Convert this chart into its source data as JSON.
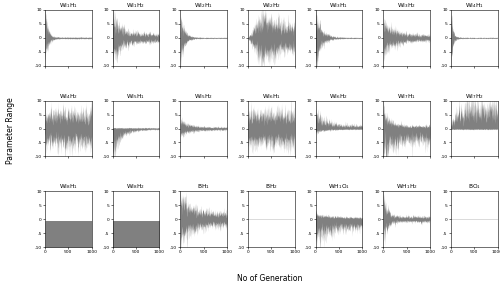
{
  "nrows": 3,
  "ncols": 7,
  "n_generations": 1000,
  "ylim": [
    -10,
    10
  ],
  "yticks": [
    -10,
    -5,
    0,
    5,
    10
  ],
  "xticks": [
    0,
    500,
    1000
  ],
  "fill_color": "#808080",
  "bg_color": "#ffffff",
  "ylabel": "Parameter Range",
  "xlabel": "No of Generation",
  "subplot_titles": [
    [
      "WI$_1$H$_1$",
      "WI$_1$H$_2$",
      "WI$_2$H$_1$",
      "WI$_2$H$_2$",
      "WI$_3$H$_1$",
      "WI$_3$H$_2$",
      "WI$_4$H$_1$"
    ],
    [
      "WI$_4$H$_2$",
      "WI$_5$H$_1$",
      "WI$_5$H$_2$",
      "WI$_6$H$_1$",
      "WI$_6$H$_2$",
      "WI$_7$H$_1$",
      "WI$_7$H$_2$"
    ],
    [
      "WI$_8$H$_1$",
      "WI$_8$H$_2$",
      "BH$_1$",
      "BH$_2$",
      "WH$_1$O$_1$",
      "WH$_1$H$_2$",
      "BO$_1$"
    ]
  ],
  "behaviors": [
    [
      {
        "type": "decay_sym",
        "start": 9,
        "end": 0.3,
        "tau": 60,
        "bias": 0.0,
        "upper_bias": 1.0,
        "lower_bias": -1.0
      },
      {
        "type": "decay_sym",
        "start": 9,
        "end": 1.5,
        "tau": 180,
        "bias": 0.0,
        "upper_bias": 1.0,
        "lower_bias": -1.0
      },
      {
        "type": "decay_sym",
        "start": 9,
        "end": 0.2,
        "tau": 80,
        "bias": 0.0,
        "upper_bias": 1.0,
        "lower_bias": -1.0
      },
      {
        "type": "plateau_sym",
        "start": 0,
        "peak": 9,
        "peak_t": 300,
        "end": 4.0,
        "bias": 0.0,
        "upper_bias": 1.0,
        "lower_bias": -1.0
      },
      {
        "type": "decay_sym",
        "start": 9,
        "end": 0.2,
        "tau": 120,
        "bias": 0.0,
        "upper_bias": 1.0,
        "lower_bias": -1.0
      },
      {
        "type": "decay_sym",
        "start": 6,
        "end": 1.0,
        "tau": 250,
        "bias": 0.0,
        "upper_bias": 1.0,
        "lower_bias": -1.0
      },
      {
        "type": "decay_sym",
        "start": 9,
        "end": 0.2,
        "tau": 40,
        "bias": 0.0,
        "upper_bias": 1.0,
        "lower_bias": -1.0
      }
    ],
    [
      {
        "type": "const_sym",
        "level": 6.0,
        "bias": 0.0,
        "upper_bias": 1.0,
        "lower_bias": -1.0
      },
      {
        "type": "grow_neg",
        "start": -9,
        "end": -0.3,
        "tau": 200,
        "upper": 0.3
      },
      {
        "type": "decay_sym",
        "start": 3,
        "end": 0.5,
        "tau": 200,
        "bias": 0.0,
        "upper_bias": 1.0,
        "lower_bias": -1.0
      },
      {
        "type": "const_sym",
        "level": 6.0,
        "bias": 0.0,
        "upper_bias": 1.0,
        "lower_bias": -1.0
      },
      {
        "type": "decay_asym",
        "start": 8,
        "end": 1.5,
        "tau": 200,
        "upper_bias": 0.8,
        "lower_bias": -0.2
      },
      {
        "type": "large_down",
        "start": 9,
        "end": 3.0,
        "tau": 150,
        "bias": -2.0
      },
      {
        "type": "grow_pos",
        "start": 2,
        "end": 9,
        "tau": 200,
        "lower": -0.3
      }
    ],
    [
      {
        "type": "const_neg",
        "upper": -0.5,
        "lower": -9.0
      },
      {
        "type": "const_neg",
        "upper": -0.5,
        "lower": -9.0
      },
      {
        "type": "decay_sym",
        "start": 8,
        "end": 2.0,
        "tau": 300,
        "bias": -1.0,
        "upper_bias": 1.0,
        "lower_bias": -1.0
      },
      {
        "type": "near_zero",
        "value": 0.05
      },
      {
        "type": "neg_spread",
        "upper_start": 2,
        "upper_end": 0.5,
        "lower_start": -8,
        "lower_end": -3
      },
      {
        "type": "decay_sym",
        "start": 9,
        "end": 1.0,
        "tau": 80,
        "bias": 0.0,
        "upper_bias": 1.0,
        "lower_bias": -1.0
      },
      {
        "type": "near_zero",
        "value": 0.05
      }
    ]
  ]
}
